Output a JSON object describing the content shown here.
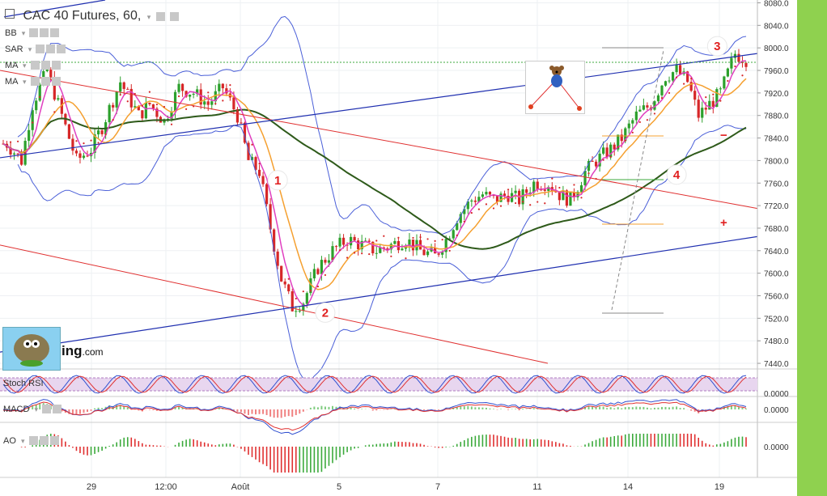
{
  "header": {
    "title": "CAC 40 Futures, 60,",
    "indicators": [
      {
        "label": "BB"
      },
      {
        "label": "SAR"
      },
      {
        "label": "MA"
      },
      {
        "label": "MA"
      }
    ]
  },
  "panes": {
    "stoch_rsi": {
      "label": "Stoch RSI",
      "axis_label": "0.0000"
    },
    "macd": {
      "label": "MACD",
      "axis_label": "0.0000"
    },
    "ao": {
      "label": "AO",
      "axis_label": "0.0000"
    }
  },
  "logo": {
    "text_main": "ing",
    "text_suffix": ".com"
  },
  "annotations": [
    {
      "text": "1",
      "date": "Aug 1",
      "price": 7765
    },
    {
      "text": "2",
      "date": "Aug 3",
      "price": 7530
    },
    {
      "text": "3",
      "date": "Aug 19",
      "price": 8003
    },
    {
      "text": "4",
      "date": "Aug 16",
      "price": 7775
    },
    {
      "text": "−",
      "date": "Aug 19",
      "price": 7845
    },
    {
      "text": "+",
      "date": "Aug 19",
      "price": 7690
    }
  ],
  "colors": {
    "up": "#2ca02c",
    "down": "#d62728",
    "bb": "#4a5fd8",
    "ma_fast": "#e040c0",
    "ma_slow": "#f5a030",
    "ma_long": "#2e5a1a",
    "channel_red": "#e03030",
    "channel_blue": "#2030b0"
  },
  "chart_data": {
    "type": "candlestick",
    "title": "CAC 40 Futures, 60,",
    "y_ticks": [
      7440,
      7480,
      7520,
      7560,
      7600,
      7640,
      7680,
      7720,
      7760,
      7800,
      7840,
      7880,
      7920,
      7960,
      8000,
      8040,
      8080
    ],
    "ylim": [
      7430,
      8085
    ],
    "x_ticks": [
      "29",
      "12:00",
      "Août",
      "5",
      "7",
      "11",
      "14",
      "19"
    ],
    "price_path": [
      [
        7830,
        1
      ],
      [
        7800,
        5
      ],
      [
        7900,
        8
      ],
      [
        7960,
        12
      ],
      [
        7900,
        15
      ],
      [
        7800,
        20
      ],
      [
        7820,
        24
      ],
      [
        7860,
        27
      ],
      [
        7940,
        32
      ],
      [
        7880,
        37
      ],
      [
        7900,
        40
      ],
      [
        7870,
        44
      ],
      [
        7930,
        48
      ],
      [
        7920,
        52
      ],
      [
        7900,
        56
      ],
      [
        7930,
        60
      ],
      [
        7880,
        64
      ],
      [
        7800,
        67
      ],
      [
        7780,
        70
      ],
      [
        7680,
        73
      ],
      [
        7590,
        76
      ],
      [
        7540,
        79
      ],
      [
        7550,
        82
      ],
      [
        7610,
        86
      ],
      [
        7640,
        90
      ],
      [
        7660,
        94
      ],
      [
        7650,
        98
      ],
      [
        7640,
        102
      ],
      [
        7650,
        106
      ],
      [
        7660,
        110
      ],
      [
        7640,
        114
      ],
      [
        7630,
        118
      ],
      [
        7660,
        121
      ],
      [
        7700,
        124
      ],
      [
        7730,
        128
      ],
      [
        7740,
        131
      ],
      [
        7730,
        134
      ],
      [
        7740,
        138
      ],
      [
        7730,
        141
      ],
      [
        7760,
        145
      ],
      [
        7760,
        149
      ],
      [
        7740,
        152
      ],
      [
        7730,
        155
      ],
      [
        7780,
        159
      ],
      [
        7800,
        162
      ],
      [
        7820,
        166
      ],
      [
        7840,
        169
      ],
      [
        7880,
        173
      ],
      [
        7900,
        177
      ],
      [
        7950,
        181
      ],
      [
        7960,
        184
      ],
      [
        7940,
        187
      ],
      [
        7880,
        190
      ],
      [
        7900,
        193
      ],
      [
        7920,
        196
      ],
      [
        7990,
        200
      ],
      [
        7980,
        203
      ]
    ],
    "candle_count": 204,
    "series": [
      {
        "name": "",
        "type": "ma",
        "color": "#2e5a1a"
      },
      {
        "name": "",
        "type": "ma",
        "color": "#f5a030"
      },
      {
        "name": "",
        "type": "ma",
        "color": "#e040c0"
      },
      {
        "name": "",
        "type": "bb",
        "color": "#4a5fd8"
      },
      {
        "name": "",
        "type": "sar",
        "color": "#d62728"
      }
    ],
    "grid": true
  }
}
